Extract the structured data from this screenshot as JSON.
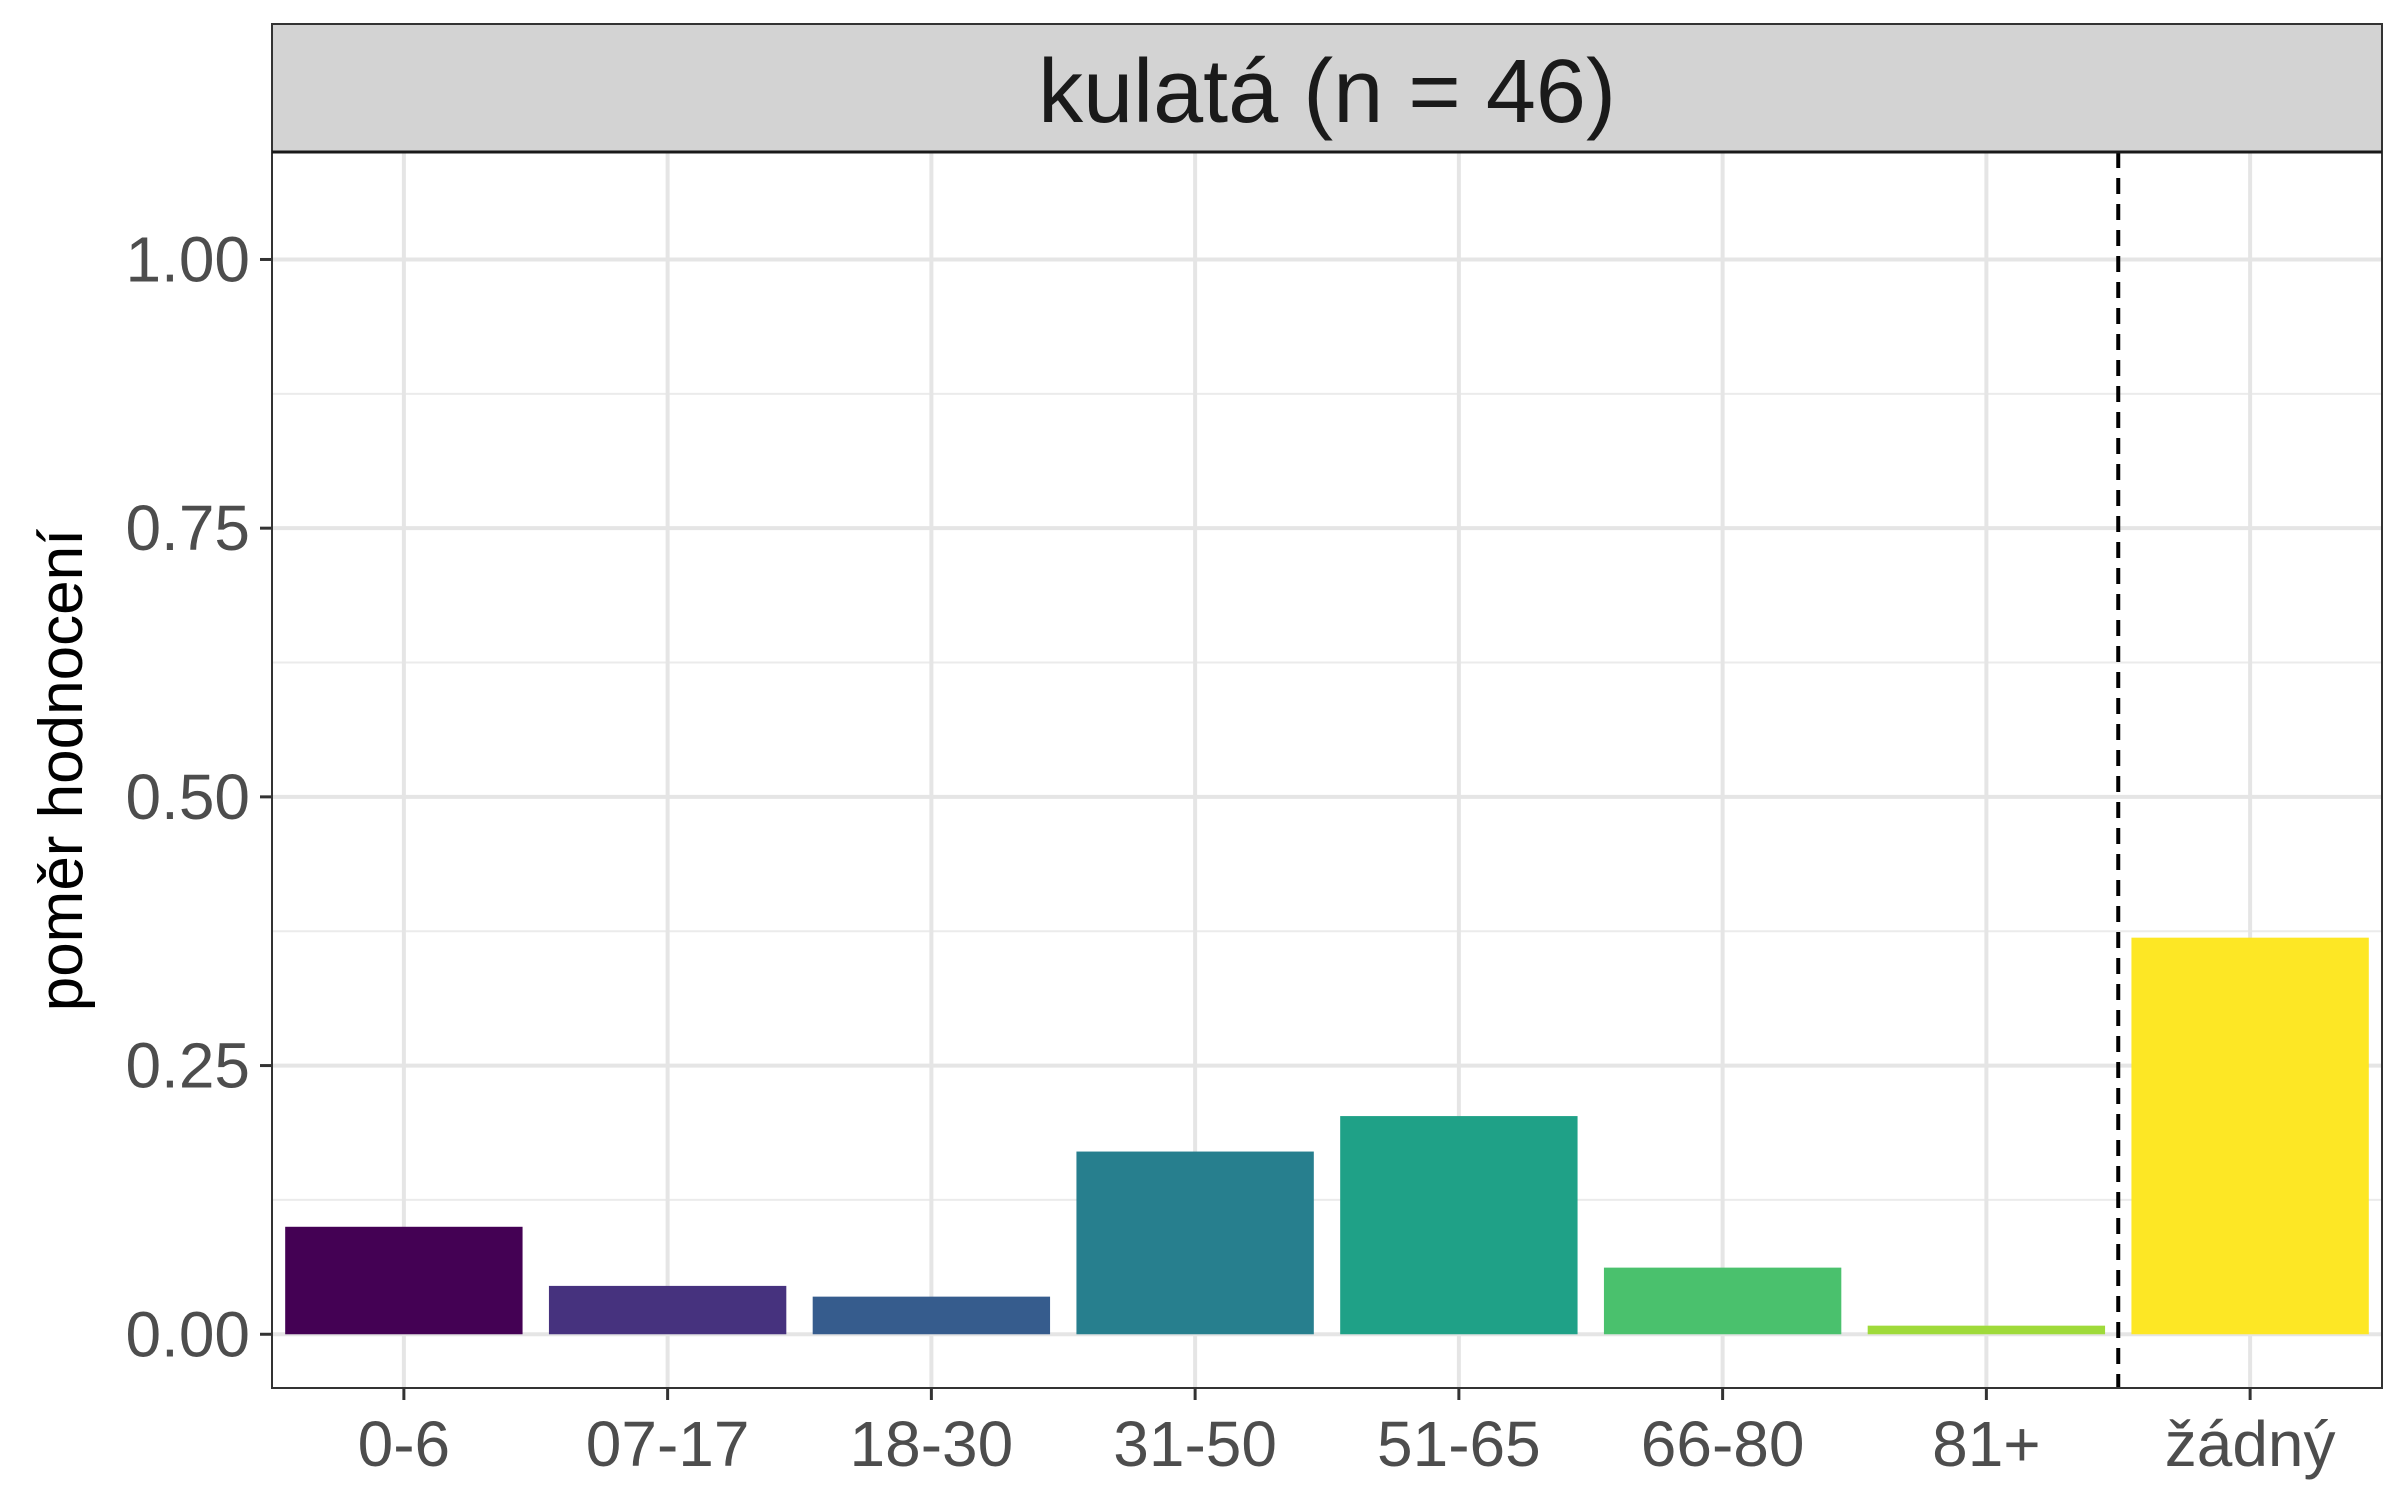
{
  "chart_data": {
    "type": "bar",
    "title": "kulatá (n = 46)",
    "xlabel": "",
    "ylabel": "poměr hodnocení",
    "categories": [
      "0-6",
      "07-17",
      "18-30",
      "31-50",
      "51-65",
      "66-80",
      "81+",
      "žádný"
    ],
    "values": [
      0.1,
      0.045,
      0.035,
      0.17,
      0.203,
      0.062,
      0.008,
      0.369
    ],
    "colors": [
      "#440154",
      "#46327E",
      "#365C8D",
      "#277F8E",
      "#1FA187",
      "#4AC16D",
      "#9FDA3A",
      "#FDE725"
    ],
    "ylim": [
      -0.05,
      1.1
    ],
    "yticks": [
      0.0,
      0.25,
      0.5,
      0.75,
      1.0
    ],
    "ytick_labels": [
      "0.00",
      "0.25",
      "0.50",
      "0.75",
      "1.00"
    ],
    "grid": true,
    "separator_after_category": "81+",
    "separator_style": "dashed",
    "strip_color": "#d3d3d3"
  }
}
